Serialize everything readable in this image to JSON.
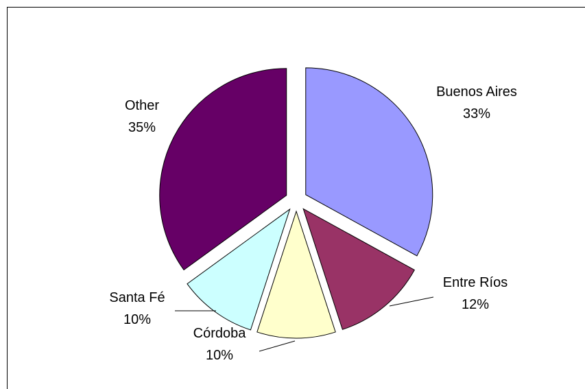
{
  "chart_data": {
    "type": "pie",
    "categories": [
      "Buenos Aires",
      "Entre Ríos",
      "Córdoba",
      "Santa Fé",
      "Other"
    ],
    "values": [
      33,
      12,
      10,
      10,
      35
    ],
    "value_labels": [
      "33%",
      "12%",
      "10%",
      "10%",
      "35%"
    ],
    "colors": [
      "#9999ff",
      "#993366",
      "#ffffcc",
      "#ccffff",
      "#660066"
    ],
    "exploded": true
  }
}
